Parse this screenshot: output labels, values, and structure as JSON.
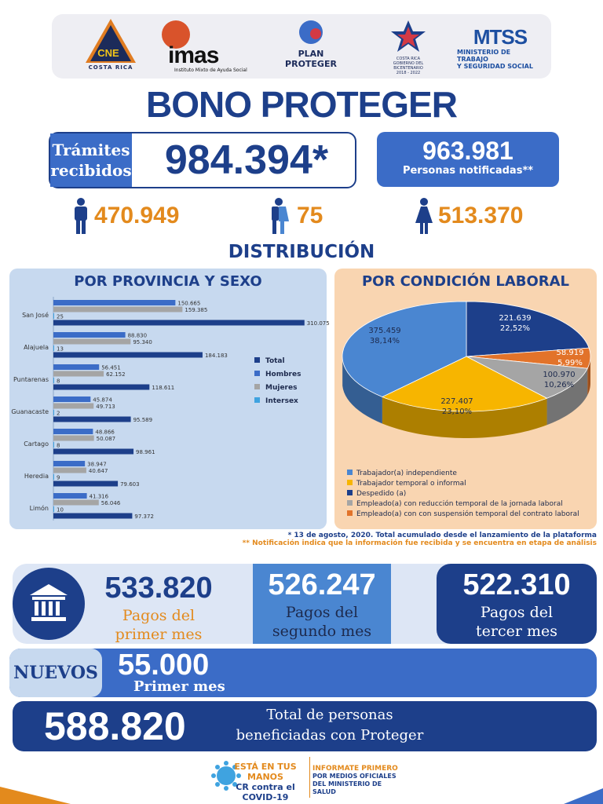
{
  "logos": {
    "cne": {
      "name": "CNE",
      "subtitle": "COSTA RICA"
    },
    "imas": {
      "name": "imas",
      "subtitle": "Instituto Mixto de Ayuda Social"
    },
    "plan": {
      "line1": "PLAN",
      "line2": "PROTEGER"
    },
    "gobierno": {
      "line1": "COSTA RICA",
      "line2": "GOBIERNO DEL BICENTENARIO",
      "line3": "2018 - 2022"
    },
    "mtss": {
      "name": "MTSS",
      "line1": "MINISTERIO DE TRABAJO",
      "line2": "Y SEGURIDAD SOCIAL"
    }
  },
  "title": "BONO PROTEGER",
  "tramites": {
    "label_line1": "Trámites",
    "label_line2": "recibidos",
    "value": "984.394*"
  },
  "notificadas": {
    "value": "963.981",
    "label": "Personas notificadas**"
  },
  "gender": {
    "hombres": "470.949",
    "intersex": "75",
    "mujeres": "513.370"
  },
  "distribucion_title": "DISTRIBUCIÓN",
  "colors": {
    "navy": "#1d3f8a",
    "blue": "#3b6cc7",
    "orange": "#e38a1d",
    "gray": "#9e9e9e",
    "light_blue": "#3fa3e0",
    "yellow": "#f7b500"
  },
  "chart_data": [
    {
      "type": "bar",
      "title": "POR PROVINCIA Y SEXO",
      "orientation": "horizontal",
      "categories": [
        "San José",
        "Alajuela",
        "Puntarenas",
        "Guanacaste",
        "Cartago",
        "Heredia",
        "Limón"
      ],
      "series": [
        {
          "name": "Hombres",
          "color": "#3b6cc7",
          "values": [
            150665,
            88830,
            56451,
            45874,
            48866,
            38947,
            41316
          ],
          "labels": [
            "150.665",
            "88.830",
            "56.451",
            "45.874",
            "48.866",
            "38.947",
            "41.316"
          ]
        },
        {
          "name": "Mujeres",
          "color": "#a5a5a5",
          "values": [
            159385,
            95340,
            62152,
            49713,
            50087,
            40647,
            56046
          ],
          "labels": [
            "159.385",
            "95.340",
            "62.152",
            "49.713",
            "50.087",
            "40.647",
            "56.046"
          ]
        },
        {
          "name": "Intersex",
          "color": "#3fa3e0",
          "values": [
            25,
            13,
            8,
            2,
            8,
            9,
            10
          ],
          "labels": [
            "25",
            "13",
            "8",
            "2",
            "8",
            "9",
            "10"
          ]
        },
        {
          "name": "Total",
          "color": "#1d3f8a",
          "values": [
            310075,
            184183,
            118611,
            95589,
            98961,
            79603,
            97372
          ],
          "labels": [
            "310.075",
            "184.183",
            "118.611",
            "95.589",
            "98.961",
            "79.603",
            "97.372"
          ]
        }
      ],
      "legend": [
        "Total",
        "Hombres",
        "Mujeres",
        "Intersex"
      ],
      "legend_placement": "right",
      "xlim": [
        0,
        320000
      ]
    },
    {
      "type": "pie",
      "title": "POR CONDICIÓN LABORAL",
      "slices": [
        {
          "name": "Trabajador(a) independiente",
          "value": 375459,
          "value_label": "375.459",
          "percent": "38,14%",
          "color": "#4a86d1"
        },
        {
          "name": "Despedido (a)",
          "value": 221639,
          "value_label": "221.639",
          "percent": "22,52%",
          "color": "#1d3f8a"
        },
        {
          "name": "Empleado(a) con con suspensión temporal del contrato laboral",
          "value": 58919,
          "value_label": "58.919",
          "percent": "5,99%",
          "color": "#e2732a"
        },
        {
          "name": "Empleado(a) con reducción temporal de la jornada laboral",
          "value": 100970,
          "value_label": "100.970",
          "percent": "10,26%",
          "color": "#a5a5a5"
        },
        {
          "name": "Trabajador temporal o informal",
          "value": 227407,
          "value_label": "227.407",
          "percent": "23,10%",
          "color": "#f7b500"
        }
      ],
      "legend": [
        {
          "label": "Trabajador(a) independiente",
          "color": "#4a86d1"
        },
        {
          "label": "Trabajador temporal o informal",
          "color": "#f7b500"
        },
        {
          "label": "Despedido (a)",
          "color": "#1d3f8a"
        },
        {
          "label": "Empleado(a) con reducción temporal de la jornada laboral",
          "color": "#a5a5a5"
        },
        {
          "label": "Empleado(a) con con suspensión temporal del contrato laboral",
          "color": "#e2732a"
        }
      ],
      "legend_placement": "bottom"
    }
  ],
  "footnotes": {
    "note1": "* 13 de agosto, 2020. Total acumulado desde el lanzamiento de la plataforma",
    "note2": "** Notificación indica que la información fue recibida y se encuentra en etapa de análisis"
  },
  "pagos": {
    "primer": {
      "value": "533.820",
      "line1": "Pagos del",
      "line2": "primer mes"
    },
    "segundo": {
      "value": "526.247",
      "line1": "Pagos del",
      "line2": "segundo mes"
    },
    "tercer": {
      "value": "522.310",
      "line1": "Pagos del",
      "line2": "tercer mes"
    }
  },
  "nuevos": {
    "tag": "NUEVOS",
    "value": "55.000",
    "label": "Primer mes"
  },
  "total": {
    "value": "588.820",
    "line1": "Total de personas",
    "line2": "beneficiadas con Proteger"
  },
  "footer": {
    "campaign_line1": "ESTÁ EN TUS MANOS",
    "campaign_line2": "CR contra el COVID-19",
    "info_line1": "INFORMATE PRIMERO",
    "info_line2": "POR MEDIOS OFICIALES",
    "info_line3": "DEL MINISTERIO DE SALUD"
  }
}
